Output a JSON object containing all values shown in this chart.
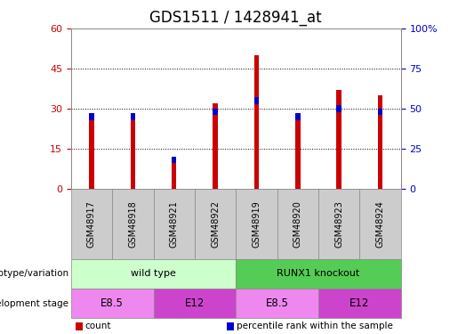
{
  "title": "GDS1511 / 1428941_at",
  "samples": [
    "GSM48917",
    "GSM48918",
    "GSM48921",
    "GSM48922",
    "GSM48919",
    "GSM48920",
    "GSM48923",
    "GSM48924"
  ],
  "counts": [
    26,
    27,
    10,
    32,
    50,
    28,
    37,
    35
  ],
  "percentiles": [
    47,
    47,
    20,
    50,
    57,
    47,
    52,
    50
  ],
  "left_ylim": [
    0,
    60
  ],
  "right_ylim": [
    0,
    100
  ],
  "left_yticks": [
    0,
    15,
    30,
    45,
    60
  ],
  "right_yticks": [
    0,
    25,
    50,
    75,
    100
  ],
  "right_yticklabels": [
    "0",
    "25",
    "50",
    "75",
    "100%"
  ],
  "bar_color_count": "#cc0000",
  "bar_color_pct": "#0000cc",
  "bar_width": 0.12,
  "pct_bar_width": 0.12,
  "pct_bar_height": 2.5,
  "grid_color": "#000000",
  "genotype_groups": [
    {
      "label": "wild type",
      "start": 0,
      "end": 4,
      "color": "#ccffcc"
    },
    {
      "label": "RUNX1 knockout",
      "start": 4,
      "end": 8,
      "color": "#55cc55"
    }
  ],
  "stage_groups": [
    {
      "label": "E8.5",
      "start": 0,
      "end": 2,
      "color": "#ee88ee"
    },
    {
      "label": "E12",
      "start": 2,
      "end": 4,
      "color": "#cc44cc"
    },
    {
      "label": "E8.5",
      "start": 4,
      "end": 6,
      "color": "#ee88ee"
    },
    {
      "label": "E12",
      "start": 6,
      "end": 8,
      "color": "#cc44cc"
    }
  ],
  "legend_items": [
    {
      "label": "count",
      "color": "#cc0000"
    },
    {
      "label": "percentile rank within the sample",
      "color": "#0000cc"
    }
  ],
  "title_fontsize": 12,
  "tick_fontsize": 8,
  "label_fontsize": 8,
  "genotype_label": "genotype/variation",
  "stage_label": "development stage",
  "bg_color": "#ffffff",
  "plot_bg_color": "#ffffff",
  "spine_color": "#888888",
  "left_color": "#cc0000",
  "right_color": "#0000cc"
}
